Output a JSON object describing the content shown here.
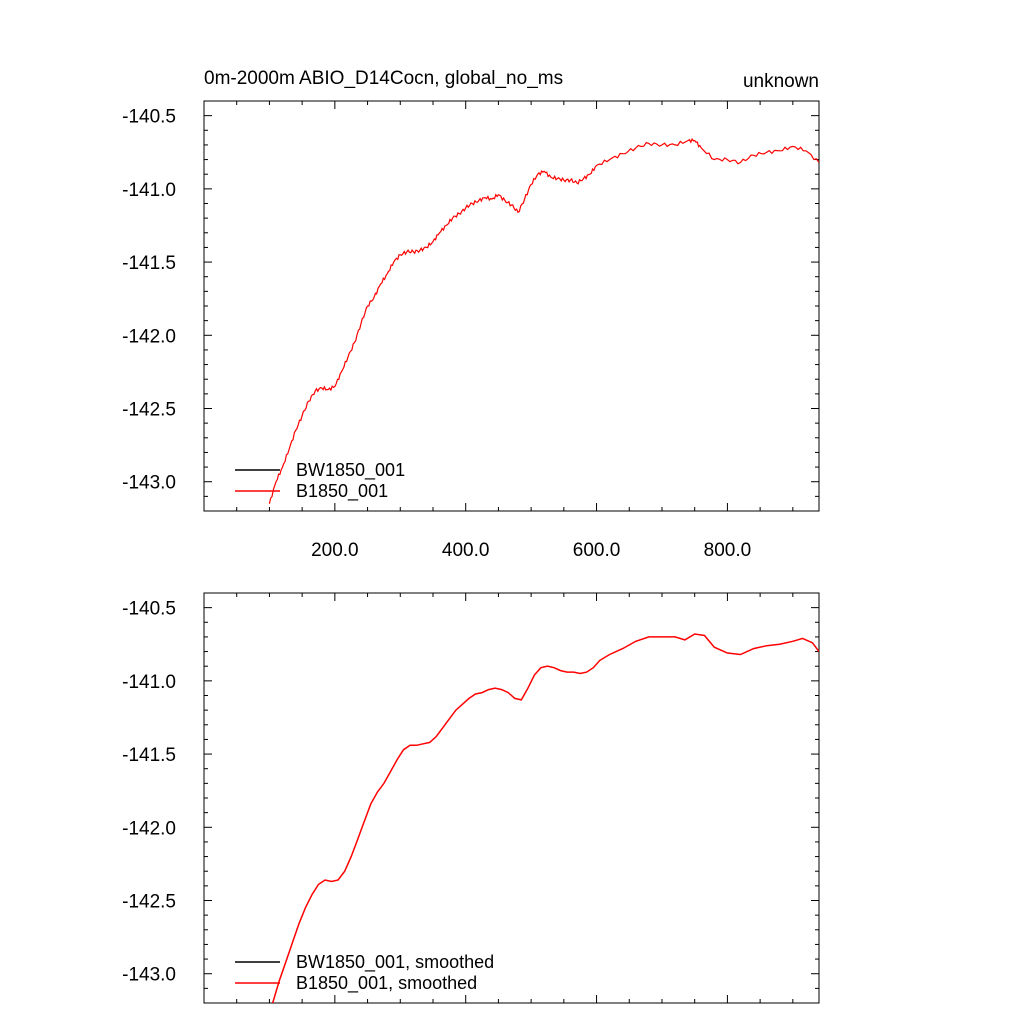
{
  "header": {
    "left_title": "0m-2000m ABIO_D14Cocn, global_no_ms",
    "right_title": "unknown"
  },
  "colors": {
    "bw1850": "#000000",
    "b1850": "#ff0000",
    "axis": "#000000"
  },
  "chart_data": [
    {
      "type": "line",
      "xlim": [
        0,
        940
      ],
      "ylim": [
        -143.2,
        -140.4
      ],
      "x_ticks": [
        "200.0",
        "400.0",
        "600.0",
        "800.0"
      ],
      "y_ticks": [
        "-140.5",
        "-141.0",
        "-141.5",
        "-142.0",
        "-142.5",
        "-143.0"
      ],
      "legend_position": "bottom-left",
      "series": [
        {
          "name": "BW1850_001",
          "color": "#000000",
          "x": [],
          "y": []
        },
        {
          "name": "B1850_001",
          "color": "#ff0000",
          "x": [
            100,
            110,
            120,
            130,
            140,
            150,
            160,
            170,
            180,
            190,
            200,
            210,
            220,
            230,
            240,
            250,
            260,
            270,
            280,
            290,
            300,
            310,
            320,
            330,
            340,
            350,
            360,
            370,
            380,
            390,
            400,
            410,
            420,
            430,
            440,
            450,
            460,
            470,
            480,
            490,
            500,
            510,
            520,
            530,
            540,
            550,
            560,
            570,
            580,
            590,
            600,
            620,
            640,
            660,
            680,
            700,
            720,
            740,
            750,
            760,
            780,
            800,
            820,
            840,
            860,
            880,
            900,
            920,
            940
          ],
          "y": [
            -143.15,
            -143.0,
            -142.9,
            -142.78,
            -142.65,
            -142.55,
            -142.45,
            -142.38,
            -142.36,
            -142.37,
            -142.35,
            -142.25,
            -142.15,
            -142.05,
            -141.92,
            -141.8,
            -141.74,
            -141.65,
            -141.58,
            -141.5,
            -141.45,
            -141.43,
            -141.43,
            -141.42,
            -141.4,
            -141.36,
            -141.3,
            -141.25,
            -141.2,
            -141.17,
            -141.13,
            -141.1,
            -141.08,
            -141.06,
            -141.07,
            -141.04,
            -141.08,
            -141.11,
            -141.16,
            -141.07,
            -140.97,
            -140.9,
            -140.88,
            -140.92,
            -140.93,
            -140.94,
            -140.94,
            -140.96,
            -140.93,
            -140.9,
            -140.84,
            -140.8,
            -140.76,
            -140.72,
            -140.69,
            -140.7,
            -140.7,
            -140.67,
            -140.67,
            -140.72,
            -140.8,
            -140.8,
            -140.82,
            -140.77,
            -140.75,
            -140.74,
            -140.71,
            -140.74,
            -140.82
          ]
        }
      ]
    },
    {
      "type": "line",
      "xlim": [
        0,
        940
      ],
      "ylim": [
        -143.2,
        -140.4
      ],
      "x_ticks": [],
      "y_ticks": [
        "-140.5",
        "-141.0",
        "-141.5",
        "-142.0",
        "-142.5",
        "-143.0"
      ],
      "legend_position": "bottom-left",
      "series": [
        {
          "name": "BW1850_001, smoothed",
          "color": "#000000",
          "x": [],
          "y": []
        },
        {
          "name": "B1850_001, smoothed",
          "color": "#ff0000",
          "x": [
            105,
            115,
            125,
            135,
            145,
            155,
            165,
            175,
            185,
            195,
            205,
            215,
            225,
            235,
            245,
            255,
            265,
            275,
            285,
            295,
            305,
            315,
            325,
            335,
            345,
            355,
            365,
            375,
            385,
            395,
            405,
            415,
            425,
            435,
            445,
            455,
            465,
            475,
            485,
            495,
            505,
            515,
            525,
            535,
            545,
            555,
            565,
            575,
            585,
            595,
            605,
            620,
            640,
            660,
            680,
            700,
            720,
            735,
            750,
            765,
            780,
            800,
            820,
            840,
            860,
            880,
            900,
            915,
            930,
            940
          ],
          "y": [
            -143.2,
            -143.05,
            -142.92,
            -142.79,
            -142.66,
            -142.55,
            -142.46,
            -142.39,
            -142.36,
            -142.37,
            -142.36,
            -142.3,
            -142.2,
            -142.08,
            -141.96,
            -141.84,
            -141.76,
            -141.7,
            -141.62,
            -141.54,
            -141.47,
            -141.44,
            -141.44,
            -141.43,
            -141.42,
            -141.38,
            -141.32,
            -141.26,
            -141.2,
            -141.16,
            -141.12,
            -141.09,
            -141.08,
            -141.06,
            -141.05,
            -141.06,
            -141.08,
            -141.12,
            -141.13,
            -141.05,
            -140.96,
            -140.91,
            -140.9,
            -140.91,
            -140.93,
            -140.94,
            -140.94,
            -140.95,
            -140.94,
            -140.91,
            -140.86,
            -140.82,
            -140.78,
            -140.73,
            -140.7,
            -140.7,
            -140.7,
            -140.72,
            -140.68,
            -140.69,
            -140.77,
            -140.81,
            -140.82,
            -140.78,
            -140.76,
            -140.75,
            -140.73,
            -140.71,
            -140.74,
            -140.8
          ]
        }
      ]
    }
  ]
}
